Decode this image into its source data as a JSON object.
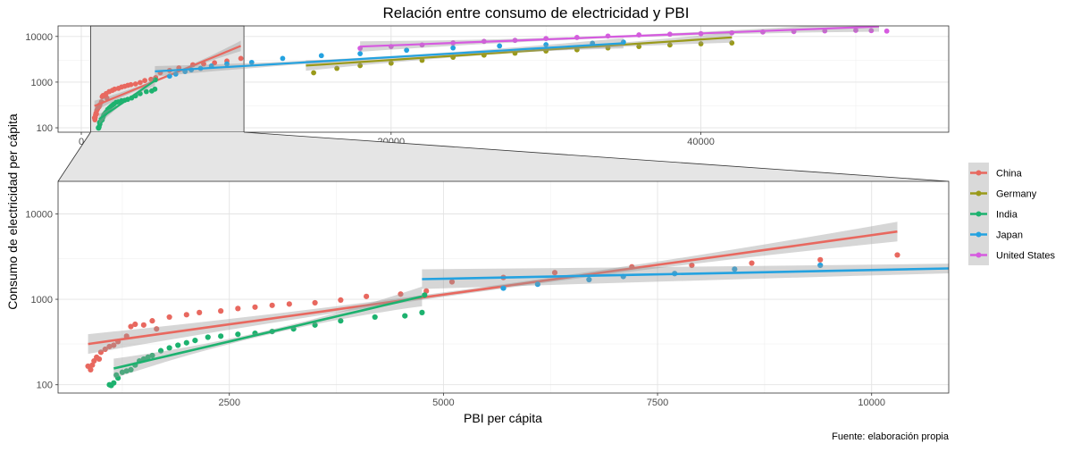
{
  "title": "Relación entre consumo de electricidad y PBI",
  "xlabel": "PBI per cápita",
  "ylabel": "Consumo de electricidad per cápita",
  "caption": "Fuente: elaboración propia",
  "colors": {
    "China": "#E8685F",
    "Germany": "#9A9A1A",
    "India": "#1DB26F",
    "Japan": "#24A2E0",
    "United States": "#D65BE0"
  },
  "chart_data": {
    "type": "scatter",
    "y_scale": "log10",
    "grid": true,
    "legend_position": "right",
    "trend_lines": "linear fit per series with confidence band",
    "overview_panel": {
      "xlim": [
        -1500,
        56000
      ],
      "ylim": [
        80,
        17000
      ],
      "x_ticks": [
        0,
        20000,
        40000
      ],
      "x_tick_labels": [
        "0",
        "20000",
        "40000"
      ],
      "y_ticks": [
        100,
        1000,
        10000
      ],
      "y_tick_labels": [
        "100",
        "1000",
        "10000"
      ],
      "zoom_region": {
        "x": [
          600,
          10500
        ]
      }
    },
    "zoom_panel": {
      "xlim": [
        500,
        10900
      ],
      "ylim": [
        80,
        24000
      ],
      "x_ticks": [
        2500,
        5000,
        7500,
        10000
      ],
      "x_tick_labels": [
        "2500",
        "5000",
        "7500",
        "10000"
      ],
      "y_ticks": [
        100,
        1000,
        10000
      ],
      "y_tick_labels": [
        "100",
        "1000",
        "10000"
      ]
    },
    "series": [
      {
        "name": "China",
        "x": [
          850,
          880,
          900,
          920,
          950,
          980,
          1000,
          1050,
          1100,
          1150,
          1200,
          1300,
          1350,
          1400,
          1500,
          1600,
          1650,
          1800,
          2000,
          2150,
          2400,
          2600,
          2800,
          3000,
          3200,
          3500,
          3800,
          4100,
          4500,
          4800,
          5100,
          5700,
          6300,
          7200,
          7900,
          8600,
          9400,
          10300
        ],
        "y": [
          165,
          150,
          170,
          190,
          210,
          200,
          240,
          260,
          280,
          290,
          320,
          370,
          480,
          510,
          500,
          560,
          450,
          620,
          660,
          700,
          730,
          780,
          810,
          850,
          880,
          910,
          980,
          1080,
          1150,
          1250,
          1600,
          1800,
          2050,
          2400,
          2500,
          2650,
          2900,
          3300
        ],
        "fit": {
          "x": [
            850,
            10300
          ],
          "y": [
            300,
            6200
          ]
        }
      },
      {
        "name": "Germany",
        "x": [
          15000,
          16500,
          18000,
          20000,
          22000,
          24000,
          26000,
          28000,
          30000,
          32000,
          34000,
          36000,
          38000,
          40000,
          42000
        ],
        "y": [
          1600,
          2000,
          2300,
          2600,
          3000,
          3500,
          3900,
          4300,
          4800,
          5100,
          5600,
          6000,
          6500,
          6900,
          7200
        ],
        "fit": {
          "x": [
            14500,
            42000
          ],
          "y": [
            2300,
            9500
          ]
        }
      },
      {
        "name": "India",
        "x": [
          1100,
          1120,
          1150,
          1180,
          1200,
          1250,
          1300,
          1350,
          1400,
          1450,
          1500,
          1550,
          1600,
          1700,
          1800,
          1900,
          2000,
          2100,
          2250,
          2400,
          2600,
          2800,
          3000,
          3250,
          3500,
          3800,
          4200,
          4550,
          4750,
          4780
        ],
        "y": [
          100,
          98,
          105,
          130,
          120,
          140,
          145,
          150,
          170,
          190,
          200,
          210,
          220,
          250,
          270,
          290,
          310,
          330,
          360,
          370,
          390,
          400,
          420,
          450,
          500,
          560,
          620,
          640,
          700,
          1120
        ],
        "fit": {
          "x": [
            1150,
            4750
          ],
          "y": [
            155,
            1080
          ]
        }
      },
      {
        "name": "Japan",
        "x": [
          5700,
          6100,
          6700,
          7100,
          7700,
          8400,
          9400,
          11000,
          13000,
          15500,
          18000,
          21000,
          24000,
          27000,
          30000,
          33000,
          35000
        ],
        "y": [
          1350,
          1500,
          1700,
          1850,
          2000,
          2250,
          2500,
          2700,
          3300,
          3800,
          4200,
          5000,
          5600,
          6200,
          6600,
          7100,
          7500
        ],
        "fit": {
          "x": [
            4750,
            35000
          ],
          "y": [
            1720,
            7100
          ]
        }
      },
      {
        "name": "United States",
        "x": [
          18000,
          20000,
          22000,
          24000,
          26000,
          28000,
          30000,
          32000,
          34000,
          36000,
          38000,
          40000,
          42000,
          44000,
          46000,
          48000,
          50000,
          51000,
          52000
        ],
        "y": [
          5500,
          6000,
          6500,
          7200,
          7800,
          8200,
          9000,
          9500,
          10200,
          10800,
          11200,
          11500,
          12000,
          12500,
          12800,
          13200,
          13600,
          13400,
          13100
        ],
        "fit": {
          "x": [
            18000,
            51500
          ],
          "y": [
            6000,
            16500
          ]
        }
      }
    ]
  }
}
